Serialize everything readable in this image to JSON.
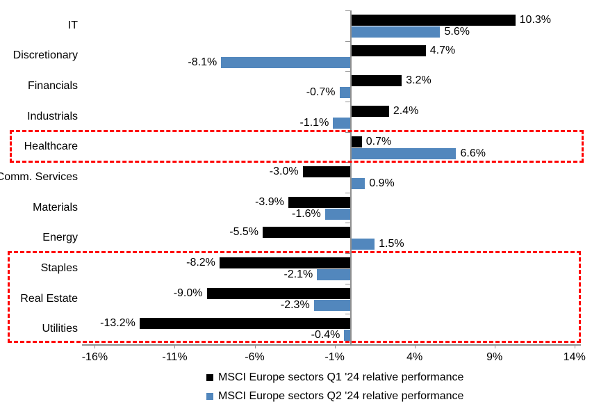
{
  "chart_data": {
    "type": "bar",
    "orientation": "horizontal",
    "categories": [
      "IT",
      "Discretionary",
      "Financials",
      "Industrials",
      "Healthcare",
      "Comm. Services",
      "Materials",
      "Energy",
      "Staples",
      "Real Estate",
      "Utilities"
    ],
    "series": [
      {
        "name": "MSCI Europe sectors Q1 '24 relative performance",
        "color": "#000000",
        "values": [
          10.3,
          4.7,
          3.2,
          2.4,
          0.7,
          -3.0,
          -3.9,
          -5.5,
          -8.2,
          -9.0,
          -13.2
        ]
      },
      {
        "name": "MSCI Europe sectors Q2 '24 relative performance",
        "color": "#5287BD",
        "values": [
          5.6,
          -8.1,
          -0.7,
          -1.1,
          6.6,
          0.9,
          -1.6,
          1.5,
          -2.1,
          -2.3,
          -0.4
        ]
      }
    ],
    "x_tick_labels": [
      "-16%",
      "-11%",
      "-6%",
      "-1%",
      "4%",
      "9%",
      "14%"
    ],
    "x_tick_values": [
      -16,
      -11,
      -6,
      -1,
      4,
      9,
      14
    ],
    "axis_range": [
      -16.8,
      14.4
    ],
    "xlabel": "",
    "ylabel": "",
    "title": "",
    "grid": false,
    "legend_position": "bottom",
    "bar_value_labels": true,
    "value_label_suffix": "%",
    "highlight_color": "#FF0000",
    "highlights": [
      {
        "categories": [
          "Healthcare"
        ],
        "from": 4,
        "to": 4,
        "style": "dashed",
        "color": "#FF0000"
      },
      {
        "categories": [
          "Staples",
          "Real Estate",
          "Utilities"
        ],
        "from": 8,
        "to": 10,
        "style": "dashed",
        "color": "#FF0000"
      }
    ]
  }
}
